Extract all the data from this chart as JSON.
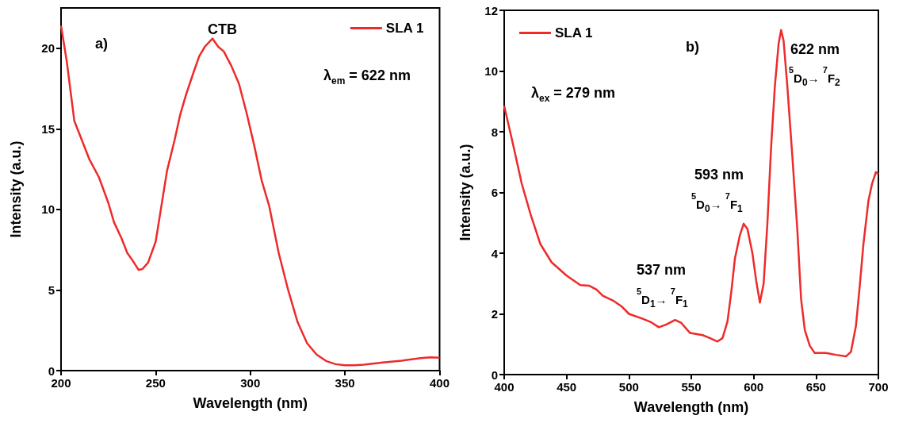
{
  "chart_data": [
    {
      "type": "line",
      "xlabel": "Wavelength (nm)",
      "ylabel": "Intensity (a.u.)",
      "xlim": [
        200,
        400
      ],
      "xticks": [
        200,
        250,
        300,
        350,
        400
      ],
      "ylim": [
        0,
        22.5
      ],
      "yticks": [
        0,
        5,
        10,
        15,
        20
      ],
      "legend": "top right",
      "annotations": [
        "a)",
        "CTB",
        "λ$_{em}$ = 622 nm"
      ],
      "series": [
        {
          "name": "SLA 1",
          "color": "#ee2a2a",
          "x": [
            200,
            203,
            207,
            210,
            215,
            220,
            225,
            228,
            232,
            235,
            238,
            241,
            243,
            246,
            250,
            253,
            256,
            260,
            263,
            266,
            270,
            273,
            276,
            280,
            283,
            286,
            290,
            294,
            298,
            302,
            306,
            310,
            315,
            320,
            325,
            330,
            335,
            340,
            345,
            350,
            355,
            360,
            370,
            380,
            390,
            395,
            400
          ],
          "values": [
            21.4,
            19.2,
            15.5,
            14.6,
            13.1,
            12.0,
            10.4,
            9.2,
            8.2,
            7.3,
            6.8,
            6.25,
            6.3,
            6.7,
            8.0,
            10.2,
            12.4,
            14.3,
            15.9,
            17.1,
            18.5,
            19.5,
            20.1,
            20.6,
            20.1,
            19.8,
            18.9,
            17.8,
            16.0,
            14.0,
            11.8,
            10.2,
            7.3,
            5.0,
            3.0,
            1.7,
            1.0,
            0.6,
            0.4,
            0.33,
            0.33,
            0.37,
            0.5,
            0.62,
            0.78,
            0.82,
            0.8
          ]
        }
      ]
    },
    {
      "type": "line",
      "xlabel": "Wavelength (nm)",
      "ylabel": "Intensity (a.u.)",
      "xlim": [
        400,
        700
      ],
      "xticks": [
        400,
        450,
        500,
        550,
        600,
        650,
        700
      ],
      "ylim": [
        0,
        12
      ],
      "yticks": [
        0,
        2,
        4,
        6,
        8,
        10,
        12
      ],
      "legend": "top left",
      "annotations": [
        "b)",
        "λ$_{ex}$ = 279 nm",
        "622 nm",
        "$^{5}$D$_{0}$→ $^{7}$F$_{2}$",
        "593 nm",
        "$^{5}$D$_{0}$→ $^{7}$F$_{1}$",
        "537 nm",
        "$^{5}$D$_{1}$→ $^{7}$F$_{1}$"
      ],
      "series": [
        {
          "name": "SLA 1",
          "color": "#ee2a2a",
          "x": [
            400,
            407,
            414,
            421,
            429,
            438,
            450,
            461,
            468,
            474,
            479,
            488,
            494,
            500,
            511,
            518,
            524,
            530,
            537,
            542,
            549,
            559,
            564,
            571,
            575,
            579,
            582,
            585,
            589,
            592,
            595,
            599,
            602,
            605,
            608,
            611,
            614,
            617,
            620,
            622,
            624,
            627,
            631,
            635,
            638,
            641,
            645,
            649,
            658,
            666,
            674,
            678,
            682,
            685,
            688,
            692,
            695,
            698,
            700
          ],
          "values": [
            8.85,
            7.6,
            6.3,
            5.3,
            4.3,
            3.7,
            3.26,
            2.95,
            2.93,
            2.8,
            2.6,
            2.42,
            2.25,
            2.0,
            1.84,
            1.72,
            1.56,
            1.65,
            1.8,
            1.7,
            1.37,
            1.3,
            1.22,
            1.09,
            1.2,
            1.75,
            2.7,
            3.83,
            4.6,
            4.97,
            4.8,
            4.0,
            3.1,
            2.37,
            3.0,
            4.97,
            7.5,
            9.5,
            10.9,
            11.35,
            11.0,
            9.5,
            7.2,
            4.78,
            2.5,
            1.47,
            0.95,
            0.71,
            0.71,
            0.65,
            0.6,
            0.75,
            1.6,
            2.89,
            4.3,
            5.72,
            6.3,
            6.67,
            6.6
          ]
        }
      ]
    }
  ]
}
